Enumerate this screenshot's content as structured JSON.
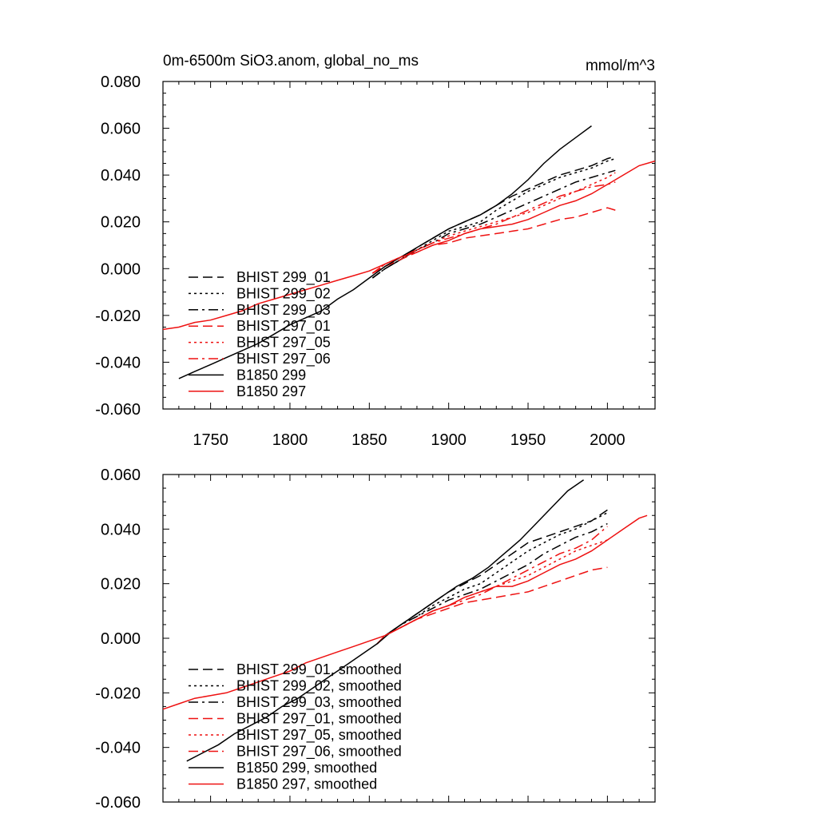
{
  "chart_data": [
    {
      "type": "line",
      "title": "0m-6500m SiO3.anom, global_no_ms",
      "units": "mmol/m^3",
      "xlim": [
        1720,
        2030
      ],
      "ylim": [
        -0.06,
        0.08
      ],
      "x_ticks": [
        "1750",
        "1800",
        "1850",
        "1900",
        "1950",
        "2000"
      ],
      "y_ticks": [
        "-0.060",
        "-0.040",
        "-0.020",
        "0.000",
        "0.020",
        "0.040",
        "0.060",
        "0.080"
      ],
      "legend_position": "bottom-left",
      "series": [
        {
          "name": "BHIST 299_01",
          "color": "#000000",
          "dash": "dash",
          "x": [
            1852,
            1860,
            1870,
            1880,
            1890,
            1900,
            1910,
            1920,
            1930,
            1940,
            1950,
            1960,
            1970,
            1980,
            1990,
            2000,
            2005
          ],
          "y": [
            -0.004,
            0.0,
            0.004,
            0.009,
            0.013,
            0.017,
            0.02,
            0.023,
            0.027,
            0.031,
            0.034,
            0.037,
            0.04,
            0.042,
            0.044,
            0.047,
            0.048
          ]
        },
        {
          "name": "BHIST 299_02",
          "color": "#000000",
          "dash": "dot",
          "x": [
            1852,
            1860,
            1870,
            1880,
            1890,
            1900,
            1910,
            1920,
            1930,
            1940,
            1950,
            1960,
            1970,
            1980,
            1990,
            2000,
            2005
          ],
          "y": [
            -0.004,
            0.0,
            0.004,
            0.008,
            0.012,
            0.016,
            0.018,
            0.02,
            0.025,
            0.029,
            0.033,
            0.036,
            0.039,
            0.041,
            0.043,
            0.046,
            0.047
          ]
        },
        {
          "name": "BHIST 299_03",
          "color": "#000000",
          "dash": "dashdot",
          "x": [
            1852,
            1860,
            1870,
            1880,
            1890,
            1900,
            1910,
            1920,
            1930,
            1940,
            1950,
            1960,
            1970,
            1980,
            1990,
            2000,
            2005
          ],
          "y": [
            -0.004,
            0.0,
            0.004,
            0.008,
            0.011,
            0.015,
            0.017,
            0.019,
            0.022,
            0.025,
            0.028,
            0.031,
            0.034,
            0.037,
            0.039,
            0.041,
            0.042
          ]
        },
        {
          "name": "BHIST 297_01",
          "color": "#ee1111",
          "dash": "dash",
          "x": [
            1852,
            1860,
            1870,
            1880,
            1890,
            1900,
            1910,
            1920,
            1930,
            1940,
            1950,
            1960,
            1970,
            1980,
            1990,
            2000,
            2005
          ],
          "y": [
            -0.002,
            0.001,
            0.004,
            0.007,
            0.01,
            0.011,
            0.013,
            0.014,
            0.015,
            0.016,
            0.017,
            0.019,
            0.021,
            0.022,
            0.024,
            0.026,
            0.025
          ]
        },
        {
          "name": "BHIST 297_05",
          "color": "#ee1111",
          "dash": "dot",
          "x": [
            1852,
            1860,
            1870,
            1880,
            1890,
            1900,
            1910,
            1920,
            1930,
            1940,
            1950,
            1960,
            1970,
            1980,
            1990,
            2000,
            2005
          ],
          "y": [
            -0.002,
            0.002,
            0.005,
            0.008,
            0.011,
            0.014,
            0.016,
            0.018,
            0.02,
            0.022,
            0.024,
            0.027,
            0.03,
            0.033,
            0.036,
            0.039,
            0.041
          ]
        },
        {
          "name": "BHIST 297_06",
          "color": "#ee1111",
          "dash": "dashdot",
          "x": [
            1852,
            1860,
            1870,
            1880,
            1890,
            1900,
            1910,
            1920,
            1930,
            1940,
            1950,
            1960,
            1970,
            1980,
            1990,
            2000,
            2005
          ],
          "y": [
            -0.002,
            0.002,
            0.005,
            0.008,
            0.011,
            0.013,
            0.015,
            0.017,
            0.019,
            0.022,
            0.025,
            0.028,
            0.031,
            0.033,
            0.035,
            0.036,
            0.037
          ]
        },
        {
          "name": "B1850 299",
          "color": "#000000",
          "dash": "solid",
          "x": [
            1730,
            1740,
            1750,
            1760,
            1770,
            1780,
            1790,
            1800,
            1810,
            1820,
            1830,
            1840,
            1850,
            1860,
            1870,
            1880,
            1890,
            1900,
            1910,
            1920,
            1930,
            1940,
            1950,
            1960,
            1970,
            1980,
            1990
          ],
          "y": [
            -0.047,
            -0.044,
            -0.041,
            -0.038,
            -0.035,
            -0.032,
            -0.028,
            -0.024,
            -0.021,
            -0.018,
            -0.013,
            -0.009,
            -0.004,
            0.001,
            0.005,
            0.009,
            0.013,
            0.017,
            0.02,
            0.023,
            0.027,
            0.032,
            0.038,
            0.045,
            0.051,
            0.056,
            0.061
          ]
        },
        {
          "name": "B1850 297",
          "color": "#ee1111",
          "dash": "solid",
          "x": [
            1720,
            1730,
            1740,
            1750,
            1760,
            1770,
            1780,
            1790,
            1800,
            1810,
            1820,
            1830,
            1840,
            1850,
            1860,
            1870,
            1880,
            1890,
            1900,
            1910,
            1920,
            1930,
            1940,
            1950,
            1960,
            1970,
            1980,
            1990,
            2000,
            2010,
            2020,
            2030
          ],
          "y": [
            -0.026,
            -0.025,
            -0.023,
            -0.022,
            -0.02,
            -0.018,
            -0.015,
            -0.013,
            -0.011,
            -0.009,
            -0.007,
            -0.005,
            -0.003,
            -0.001,
            0.002,
            0.005,
            0.007,
            0.01,
            0.012,
            0.015,
            0.017,
            0.018,
            0.019,
            0.021,
            0.024,
            0.027,
            0.029,
            0.032,
            0.036,
            0.04,
            0.044,
            0.046
          ]
        }
      ]
    },
    {
      "type": "line",
      "title": "",
      "units": "",
      "xlim": [
        1720,
        2030
      ],
      "ylim": [
        -0.06,
        0.06
      ],
      "x_ticks": [],
      "y_ticks": [
        "-0.060",
        "-0.040",
        "-0.020",
        "0.000",
        "0.020",
        "0.040",
        "0.060"
      ],
      "legend_position": "bottom-left",
      "series": [
        {
          "name": "BHIST 299_01, smoothed",
          "color": "#000000",
          "dash": "dash",
          "x": [
            1855,
            1860,
            1870,
            1880,
            1890,
            1900,
            1910,
            1920,
            1930,
            1940,
            1950,
            1960,
            1970,
            1980,
            1990,
            2000
          ],
          "y": [
            -0.002,
            0.001,
            0.005,
            0.009,
            0.013,
            0.017,
            0.02,
            0.023,
            0.027,
            0.031,
            0.035,
            0.037,
            0.039,
            0.041,
            0.043,
            0.047
          ]
        },
        {
          "name": "BHIST 299_02, smoothed",
          "color": "#000000",
          "dash": "dot",
          "x": [
            1855,
            1860,
            1870,
            1880,
            1890,
            1900,
            1910,
            1920,
            1930,
            1940,
            1950,
            1960,
            1970,
            1980,
            1990,
            2000
          ],
          "y": [
            -0.002,
            0.001,
            0.005,
            0.008,
            0.012,
            0.015,
            0.018,
            0.02,
            0.024,
            0.028,
            0.032,
            0.035,
            0.038,
            0.04,
            0.043,
            0.046
          ]
        },
        {
          "name": "BHIST 299_03, smoothed",
          "color": "#000000",
          "dash": "dashdot",
          "x": [
            1855,
            1860,
            1870,
            1880,
            1890,
            1900,
            1910,
            1920,
            1930,
            1940,
            1950,
            1960,
            1970,
            1980,
            1990,
            2000
          ],
          "y": [
            -0.002,
            0.001,
            0.005,
            0.008,
            0.011,
            0.014,
            0.016,
            0.018,
            0.021,
            0.024,
            0.027,
            0.031,
            0.034,
            0.037,
            0.039,
            0.042
          ]
        },
        {
          "name": "BHIST 297_01, smoothed",
          "color": "#ee1111",
          "dash": "dash",
          "x": [
            1855,
            1860,
            1870,
            1880,
            1890,
            1900,
            1910,
            1920,
            1930,
            1940,
            1950,
            1960,
            1970,
            1980,
            1990,
            2000
          ],
          "y": [
            -0.002,
            0.001,
            0.004,
            0.007,
            0.009,
            0.011,
            0.013,
            0.014,
            0.015,
            0.016,
            0.017,
            0.019,
            0.021,
            0.023,
            0.025,
            0.026
          ]
        },
        {
          "name": "BHIST 297_05, smoothed",
          "color": "#ee1111",
          "dash": "dot",
          "x": [
            1855,
            1860,
            1870,
            1880,
            1890,
            1900,
            1910,
            1920,
            1930,
            1940,
            1950,
            1960,
            1970,
            1980,
            1990,
            2000
          ],
          "y": [
            -0.002,
            0.001,
            0.004,
            0.007,
            0.01,
            0.012,
            0.015,
            0.017,
            0.019,
            0.021,
            0.023,
            0.026,
            0.029,
            0.032,
            0.034,
            0.036
          ]
        },
        {
          "name": "BHIST 297_06, smoothed",
          "color": "#ee1111",
          "dash": "dashdot",
          "x": [
            1855,
            1860,
            1870,
            1880,
            1890,
            1900,
            1910,
            1920,
            1930,
            1940,
            1950,
            1960,
            1970,
            1980,
            1990,
            2000
          ],
          "y": [
            -0.002,
            0.001,
            0.004,
            0.007,
            0.01,
            0.012,
            0.014,
            0.016,
            0.019,
            0.022,
            0.025,
            0.028,
            0.031,
            0.033,
            0.036,
            0.041
          ]
        },
        {
          "name": "B1850 299, smoothed",
          "color": "#000000",
          "dash": "solid",
          "x": [
            1735,
            1745,
            1755,
            1765,
            1775,
            1785,
            1795,
            1805,
            1815,
            1825,
            1835,
            1845,
            1855,
            1865,
            1875,
            1885,
            1895,
            1905,
            1915,
            1925,
            1935,
            1945,
            1955,
            1965,
            1975,
            1985
          ],
          "y": [
            -0.045,
            -0.042,
            -0.039,
            -0.035,
            -0.032,
            -0.029,
            -0.025,
            -0.022,
            -0.018,
            -0.014,
            -0.01,
            -0.006,
            -0.002,
            0.003,
            0.007,
            0.011,
            0.015,
            0.019,
            0.022,
            0.026,
            0.031,
            0.036,
            0.042,
            0.048,
            0.054,
            0.058
          ]
        },
        {
          "name": "B1850 297, smoothed",
          "color": "#ee1111",
          "dash": "solid",
          "x": [
            1720,
            1730,
            1740,
            1750,
            1760,
            1770,
            1780,
            1790,
            1800,
            1810,
            1820,
            1830,
            1840,
            1850,
            1860,
            1870,
            1880,
            1890,
            1900,
            1910,
            1920,
            1930,
            1940,
            1950,
            1960,
            1970,
            1980,
            1990,
            2000,
            2010,
            2020,
            2025
          ],
          "y": [
            -0.026,
            -0.024,
            -0.022,
            -0.021,
            -0.02,
            -0.018,
            -0.016,
            -0.014,
            -0.012,
            -0.009,
            -0.007,
            -0.005,
            -0.003,
            -0.001,
            0.001,
            0.004,
            0.007,
            0.01,
            0.012,
            0.015,
            0.017,
            0.019,
            0.019,
            0.021,
            0.024,
            0.027,
            0.029,
            0.032,
            0.036,
            0.04,
            0.044,
            0.045
          ]
        }
      ]
    }
  ]
}
